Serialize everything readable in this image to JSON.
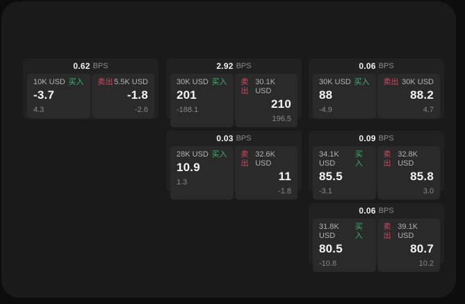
{
  "colors": {
    "backdrop": "#0d0d0d",
    "panel_background": "#1a1a1a",
    "card_background": "#212121",
    "subpanel_background": "#2a2a2a",
    "buy": "#3eb370",
    "sell": "#cf4a63"
  },
  "labels": {
    "bps": "BPS",
    "buy": "买入",
    "sell": "卖出"
  },
  "cards": [
    {
      "bps": "0.62",
      "buy": {
        "amount": "10K USD",
        "price": "-3.7",
        "delta": "4.3"
      },
      "sell": {
        "amount": "5.5K USD",
        "price": "-1.8",
        "delta": "-2.6"
      }
    },
    {
      "bps": "2.92",
      "buy": {
        "amount": "30K USD",
        "price": "201",
        "delta": "-188.1"
      },
      "sell": {
        "amount": "30.1K USD",
        "price": "210",
        "delta": "196.5"
      }
    },
    {
      "bps": "0.06",
      "buy": {
        "amount": "30K USD",
        "price": "88",
        "delta": "-4.9"
      },
      "sell": {
        "amount": "30K USD",
        "price": "88.2",
        "delta": "4.7"
      }
    },
    {
      "bps": "0.03",
      "buy": {
        "amount": "28K USD",
        "price": "10.9",
        "delta": "1.3"
      },
      "sell": {
        "amount": "32.6K USD",
        "price": "11",
        "delta": "-1.8"
      }
    },
    {
      "bps": "0.09",
      "buy": {
        "amount": "34.1K USD",
        "price": "85.5",
        "delta": "-3.1"
      },
      "sell": {
        "amount": "32.8K USD",
        "price": "85.8",
        "delta": "3.0"
      }
    },
    {
      "bps": "0.06",
      "buy": {
        "amount": "31.8K USD",
        "price": "80.5",
        "delta": "-10.8"
      },
      "sell": {
        "amount": "39.1K USD",
        "price": "80.7",
        "delta": "10.2"
      }
    }
  ]
}
